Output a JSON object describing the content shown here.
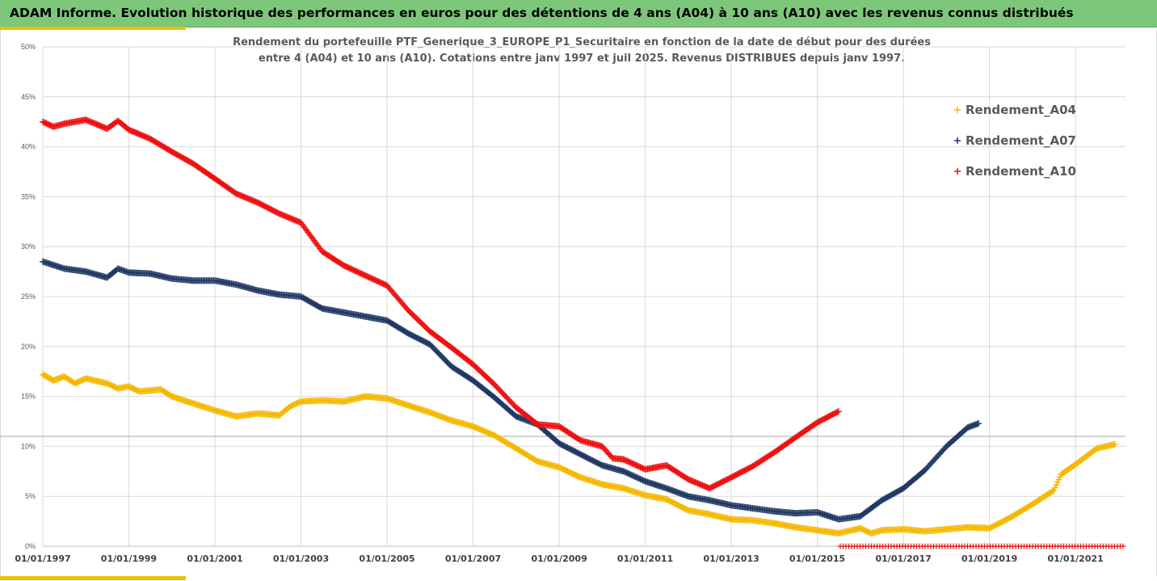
{
  "banner": {
    "title": "ADAM Informe. Evolution historique des performances en euros pour des détentions de 4 ans (A04) à 10 ans (A10) avec les revenus connus distribués"
  },
  "colors": {
    "banner": "#7dc77b",
    "accent": "#f0c000",
    "A04": "#f5b800",
    "A07": "#203864",
    "A10": "#ee1111",
    "grid": "#d9d9d9",
    "refline": "#a6a6a6"
  },
  "chart_data": {
    "type": "scatter",
    "title_lines": [
      "Rendement du portefeuille PTF_Generique_3_EUROPE_P1_Securitaire  en fonction de la date de début pour des durées",
      "entre 4 (A04) et 10 ans (A10). Cotations entre janv 1997 et juil 2025. Revenus DISTRIBUES depuis janv 1997."
    ],
    "x_range": [
      "1997-01-01",
      "2022-03-01"
    ],
    "y_range": [
      0,
      50
    ],
    "y_unit": "%",
    "y_ticks": [
      "0%",
      "5%",
      "10%",
      "15%",
      "20%",
      "25%",
      "30%",
      "35%",
      "40%",
      "45%",
      "50%"
    ],
    "x_ticks": [
      "01/01/1997",
      "01/01/1999",
      "01/01/2001",
      "01/01/2003",
      "01/01/2005",
      "01/01/2007",
      "01/01/2009",
      "01/01/2011",
      "01/01/2013",
      "01/01/2015",
      "01/01/2017",
      "01/01/2019",
      "01/01/2021"
    ],
    "grid": "horizontal",
    "reference_line_y": 11,
    "legend_position": "top-right",
    "marker": "+",
    "series": [
      {
        "name": "Rendement_A04",
        "color": "#f5b800",
        "points": [
          [
            "1997-01-01",
            17.2
          ],
          [
            "1997-04-01",
            16.6
          ],
          [
            "1997-07-01",
            17.0
          ],
          [
            "1997-10-01",
            16.3
          ],
          [
            "1998-01-01",
            16.8
          ],
          [
            "1998-07-01",
            16.3
          ],
          [
            "1998-10-01",
            15.8
          ],
          [
            "1999-01-01",
            16.0
          ],
          [
            "1999-04-01",
            15.5
          ],
          [
            "1999-10-01",
            15.7
          ],
          [
            "2000-01-01",
            15.0
          ],
          [
            "2000-07-01",
            14.3
          ],
          [
            "2001-01-01",
            13.6
          ],
          [
            "2001-07-01",
            13.0
          ],
          [
            "2002-01-01",
            13.3
          ],
          [
            "2002-07-01",
            13.1
          ],
          [
            "2002-10-01",
            14.0
          ],
          [
            "2003-01-01",
            14.5
          ],
          [
            "2003-07-01",
            14.6
          ],
          [
            "2004-01-01",
            14.5
          ],
          [
            "2004-07-01",
            15.0
          ],
          [
            "2005-01-01",
            14.8
          ],
          [
            "2005-07-01",
            14.1
          ],
          [
            "2006-01-01",
            13.4
          ],
          [
            "2006-07-01",
            12.6
          ],
          [
            "2007-01-01",
            12.0
          ],
          [
            "2007-07-01",
            11.1
          ],
          [
            "2008-01-01",
            9.8
          ],
          [
            "2008-07-01",
            8.5
          ],
          [
            "2009-01-01",
            7.9
          ],
          [
            "2009-07-01",
            6.9
          ],
          [
            "2010-01-01",
            6.2
          ],
          [
            "2010-07-01",
            5.8
          ],
          [
            "2011-01-01",
            5.1
          ],
          [
            "2011-07-01",
            4.7
          ],
          [
            "2012-01-01",
            3.6
          ],
          [
            "2012-07-01",
            3.2
          ],
          [
            "2013-01-01",
            2.7
          ],
          [
            "2013-07-01",
            2.6
          ],
          [
            "2014-01-01",
            2.3
          ],
          [
            "2014-07-01",
            1.9
          ],
          [
            "2015-01-01",
            1.6
          ],
          [
            "2015-07-01",
            1.3
          ],
          [
            "2016-01-01",
            1.8
          ],
          [
            "2016-04-01",
            1.3
          ],
          [
            "2016-07-01",
            1.6
          ],
          [
            "2017-01-01",
            1.7
          ],
          [
            "2017-07-01",
            1.5
          ],
          [
            "2018-01-01",
            1.7
          ],
          [
            "2018-07-01",
            1.9
          ],
          [
            "2019-01-01",
            1.8
          ],
          [
            "2019-07-01",
            2.9
          ],
          [
            "2020-01-01",
            4.2
          ],
          [
            "2020-07-01",
            5.6
          ],
          [
            "2020-09-01",
            7.2
          ],
          [
            "2021-01-01",
            8.2
          ],
          [
            "2021-07-01",
            9.8
          ],
          [
            "2021-12-01",
            10.2
          ]
        ]
      },
      {
        "name": "Rendement_A07",
        "color": "#203864",
        "points": [
          [
            "1997-01-01",
            28.5
          ],
          [
            "1997-07-01",
            27.8
          ],
          [
            "1998-01-01",
            27.5
          ],
          [
            "1998-07-01",
            26.9
          ],
          [
            "1998-10-01",
            27.8
          ],
          [
            "1999-01-01",
            27.4
          ],
          [
            "1999-07-01",
            27.3
          ],
          [
            "2000-01-01",
            26.8
          ],
          [
            "2000-07-01",
            26.6
          ],
          [
            "2001-01-01",
            26.6
          ],
          [
            "2001-07-01",
            26.2
          ],
          [
            "2002-01-01",
            25.6
          ],
          [
            "2002-07-01",
            25.2
          ],
          [
            "2003-01-01",
            25.0
          ],
          [
            "2003-07-01",
            23.8
          ],
          [
            "2004-01-01",
            23.4
          ],
          [
            "2004-07-01",
            23.0
          ],
          [
            "2005-01-01",
            22.6
          ],
          [
            "2005-07-01",
            21.3
          ],
          [
            "2006-01-01",
            20.2
          ],
          [
            "2006-07-01",
            18.0
          ],
          [
            "2007-01-01",
            16.6
          ],
          [
            "2007-07-01",
            14.9
          ],
          [
            "2008-01-01",
            13.0
          ],
          [
            "2008-07-01",
            12.2
          ],
          [
            "2009-01-01",
            10.3
          ],
          [
            "2009-07-01",
            9.2
          ],
          [
            "2010-01-01",
            8.1
          ],
          [
            "2010-07-01",
            7.5
          ],
          [
            "2011-01-01",
            6.5
          ],
          [
            "2011-07-01",
            5.8
          ],
          [
            "2012-01-01",
            5.0
          ],
          [
            "2012-07-01",
            4.6
          ],
          [
            "2013-01-01",
            4.1
          ],
          [
            "2013-07-01",
            3.8
          ],
          [
            "2014-01-01",
            3.5
          ],
          [
            "2014-07-01",
            3.3
          ],
          [
            "2015-01-01",
            3.4
          ],
          [
            "2015-07-01",
            2.7
          ],
          [
            "2016-01-01",
            3.0
          ],
          [
            "2016-07-01",
            4.6
          ],
          [
            "2017-01-01",
            5.8
          ],
          [
            "2017-07-01",
            7.6
          ],
          [
            "2018-01-01",
            10.0
          ],
          [
            "2018-07-01",
            11.9
          ],
          [
            "2018-10-01",
            12.3
          ]
        ]
      },
      {
        "name": "Rendement_A10",
        "color": "#ee1111",
        "points": [
          [
            "1997-01-01",
            42.5
          ],
          [
            "1997-04-01",
            42.0
          ],
          [
            "1997-07-01",
            42.3
          ],
          [
            "1998-01-01",
            42.7
          ],
          [
            "1998-07-01",
            41.8
          ],
          [
            "1998-10-01",
            42.6
          ],
          [
            "1999-01-01",
            41.7
          ],
          [
            "1999-07-01",
            40.8
          ],
          [
            "2000-01-01",
            39.5
          ],
          [
            "2000-07-01",
            38.3
          ],
          [
            "2001-01-01",
            36.8
          ],
          [
            "2001-07-01",
            35.3
          ],
          [
            "2002-01-01",
            34.4
          ],
          [
            "2002-07-01",
            33.3
          ],
          [
            "2003-01-01",
            32.4
          ],
          [
            "2003-07-01",
            29.5
          ],
          [
            "2004-01-01",
            28.1
          ],
          [
            "2004-07-01",
            27.1
          ],
          [
            "2005-01-01",
            26.1
          ],
          [
            "2005-07-01",
            23.6
          ],
          [
            "2006-01-01",
            21.5
          ],
          [
            "2006-07-01",
            19.9
          ],
          [
            "2007-01-01",
            18.2
          ],
          [
            "2007-07-01",
            16.2
          ],
          [
            "2008-01-01",
            13.9
          ],
          [
            "2008-07-01",
            12.2
          ],
          [
            "2009-01-01",
            12.0
          ],
          [
            "2009-07-01",
            10.6
          ],
          [
            "2010-01-01",
            10.0
          ],
          [
            "2010-04-01",
            8.8
          ],
          [
            "2010-07-01",
            8.7
          ],
          [
            "2011-01-01",
            7.7
          ],
          [
            "2011-07-01",
            8.1
          ],
          [
            "2012-01-01",
            6.7
          ],
          [
            "2012-07-01",
            5.8
          ],
          [
            "2013-01-01",
            6.9
          ],
          [
            "2013-07-01",
            8.0
          ],
          [
            "2014-01-01",
            9.4
          ],
          [
            "2014-07-01",
            10.9
          ],
          [
            "2015-01-01",
            12.4
          ],
          [
            "2015-07-01",
            13.5
          ]
        ]
      }
    ]
  }
}
